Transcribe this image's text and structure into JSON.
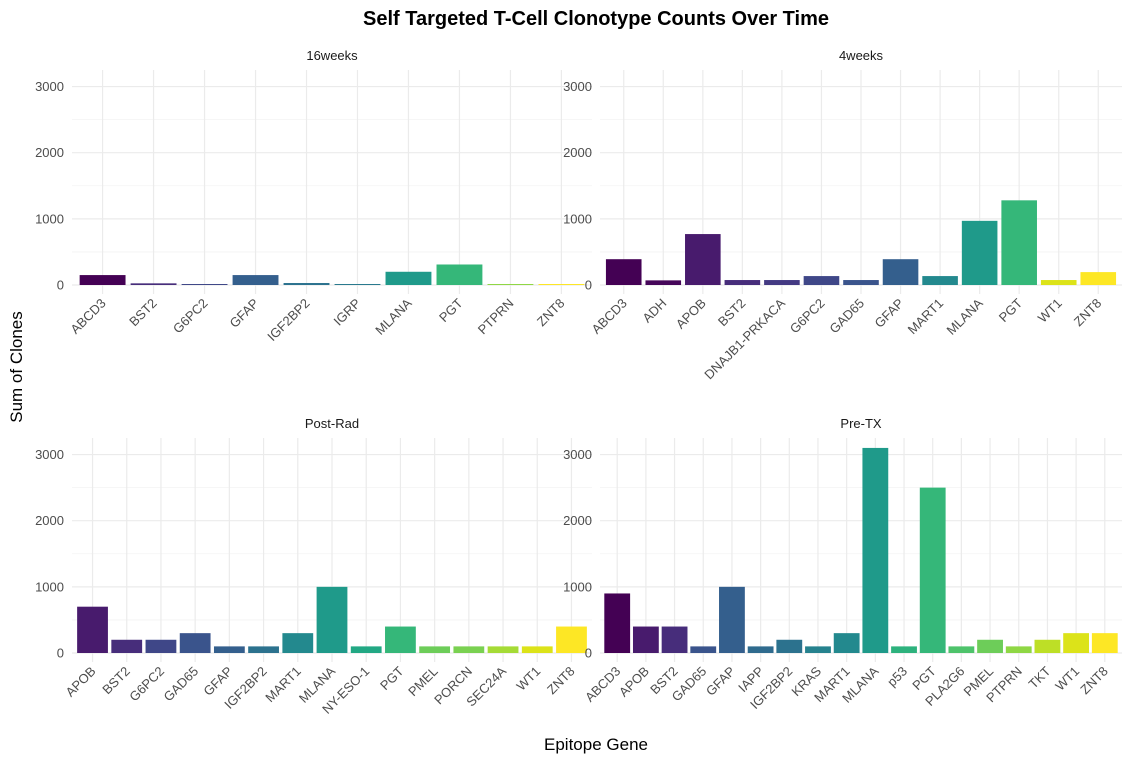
{
  "chart_data": {
    "type": "bar",
    "title": "Self Targeted T-Cell Clonotype Counts Over Time",
    "xlabel": "Epitope Gene",
    "ylabel": "Sum of Clones",
    "ylim": [
      0,
      3250
    ],
    "yticks": [
      0,
      1000,
      2000,
      3000
    ],
    "grid": true,
    "legend": "none",
    "palette": "viridis",
    "facets": [
      {
        "label": "16weeks",
        "categories": [
          "ABCD3",
          "BST2",
          "G6PC2",
          "GFAP",
          "IGF2BP2",
          "IGRP",
          "MLANA",
          "PGT",
          "PTPRN",
          "ZNT8"
        ],
        "values": [
          150,
          25,
          15,
          150,
          30,
          15,
          200,
          310,
          15,
          15
        ]
      },
      {
        "label": "4weeks",
        "categories": [
          "ABCD3",
          "ADH",
          "APOB",
          "BST2",
          "DNAJB1-PRKACA",
          "G6PC2",
          "GAD65",
          "GFAP",
          "MART1",
          "MLANA",
          "PGT",
          "WT1",
          "ZNT8"
        ],
        "values": [
          390,
          70,
          770,
          75,
          75,
          135,
          75,
          390,
          135,
          970,
          1280,
          75,
          195
        ]
      },
      {
        "label": "Post-Rad",
        "categories": [
          "APOB",
          "BST2",
          "G6PC2",
          "GAD65",
          "GFAP",
          "IGF2BP2",
          "MART1",
          "MLANA",
          "NY-ESO-1",
          "PGT",
          "PMEL",
          "PORCN",
          "SEC24A",
          "WT1",
          "ZNT8"
        ],
        "values": [
          700,
          200,
          200,
          300,
          100,
          100,
          300,
          1000,
          100,
          400,
          100,
          100,
          100,
          100,
          400
        ]
      },
      {
        "label": "Pre-TX",
        "categories": [
          "ABCD3",
          "APOB",
          "BST2",
          "GAD65",
          "GFAP",
          "IAPP",
          "IGF2BP2",
          "KRAS",
          "MART1",
          "MLANA",
          "p53",
          "PGT",
          "PLA2G6",
          "PMEL",
          "PTPRN",
          "TKT",
          "WT1",
          "ZNT8"
        ],
        "values": [
          900,
          400,
          400,
          100,
          1000,
          100,
          200,
          100,
          300,
          3100,
          100,
          2500,
          100,
          200,
          100,
          200,
          300,
          300
        ]
      }
    ],
    "category_colors": {
      "ABCD3": "#440154",
      "ADH": "#46075A",
      "APOB": "#481B6D",
      "BST2": "#472D7B",
      "DNAJB1-PRKACA": "#443A83",
      "G6PC2": "#3F4788",
      "GAD65": "#3A548C",
      "GFAP": "#345F8D",
      "IAPP": "#2F6B8E",
      "IGF2BP2": "#2C728E",
      "IGRP": "#297A8E",
      "KRAS": "#26828E",
      "MART1": "#23898E",
      "MLANA": "#1F9A8A",
      "NY-ESO-1": "#22A884",
      "p53": "#2DB27D",
      "PGT": "#35B779",
      "PLA2G6": "#4EC36B",
      "PMEL": "#6DCD59",
      "PORCN": "#7AD151",
      "PTPRN": "#8FD744",
      "SEC24A": "#A5DB36",
      "TKT": "#BDDF26",
      "WT1": "#DCE319",
      "ZNT8": "#FDE725"
    }
  }
}
